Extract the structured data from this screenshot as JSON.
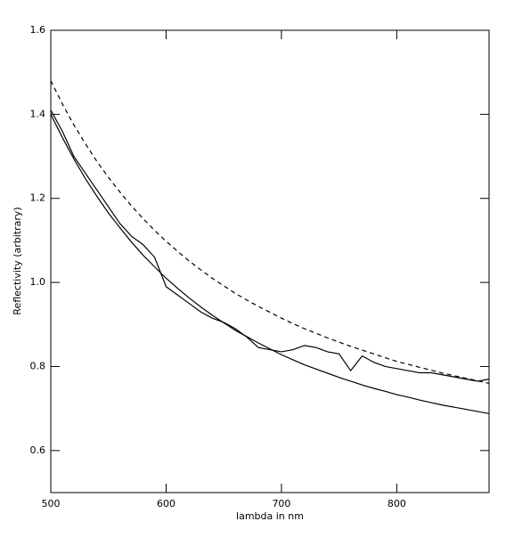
{
  "chart_data": {
    "type": "line",
    "xlabel": "lambda in nm",
    "ylabel": "Reflectivity (arbitrary)",
    "x": [
      500,
      510,
      520,
      530,
      540,
      550,
      560,
      570,
      580,
      590,
      600,
      610,
      620,
      630,
      640,
      650,
      660,
      670,
      680,
      690,
      700,
      710,
      720,
      730,
      740,
      750,
      760,
      770,
      780,
      790,
      800,
      810,
      820,
      830,
      840,
      850,
      860,
      870,
      880
    ],
    "series": [
      {
        "color": "#000000",
        "linestyle": "solid",
        "values": [
          1.4,
          1.345,
          1.294,
          1.247,
          1.205,
          1.165,
          1.13,
          1.096,
          1.065,
          1.037,
          1.01,
          0.986,
          0.963,
          0.942,
          0.922,
          0.904,
          0.886,
          0.871,
          0.856,
          0.842,
          0.828,
          0.816,
          0.804,
          0.794,
          0.784,
          0.774,
          0.765,
          0.756,
          0.748,
          0.741,
          0.733,
          0.727,
          0.72,
          0.714,
          0.708,
          0.703,
          0.698,
          0.693,
          0.688
        ]
      },
      {
        "color": "#000000",
        "linestyle": "dashed",
        "values": [
          1.48,
          1.425,
          1.375,
          1.33,
          1.288,
          1.25,
          1.215,
          1.182,
          1.152,
          1.124,
          1.098,
          1.074,
          1.051,
          1.03,
          1.01,
          0.992,
          0.974,
          0.958,
          0.943,
          0.929,
          0.915,
          0.902,
          0.89,
          0.879,
          0.868,
          0.858,
          0.848,
          0.839,
          0.83,
          0.821,
          0.812,
          0.805,
          0.798,
          0.791,
          0.784,
          0.778,
          0.772,
          0.766,
          0.76
        ]
      },
      {
        "color": "#000000",
        "linestyle": "solid",
        "values": [
          1.41,
          1.36,
          1.3,
          1.26,
          1.22,
          1.18,
          1.14,
          1.11,
          1.09,
          1.06,
          0.99,
          0.97,
          0.95,
          0.93,
          0.915,
          0.905,
          0.89,
          0.87,
          0.845,
          0.84,
          0.835,
          0.84,
          0.85,
          0.845,
          0.835,
          0.83,
          0.79,
          0.825,
          0.81,
          0.8,
          0.795,
          0.79,
          0.785,
          0.785,
          0.78,
          0.775,
          0.77,
          0.765,
          0.77
        ]
      }
    ],
    "xlim": [
      500,
      880
    ],
    "ylim": [
      0.5,
      1.6
    ],
    "xticks": [
      500,
      600,
      700,
      800
    ],
    "yticks": [
      0.6,
      0.8,
      {
        "value": 1,
        "label": "1.0"
      },
      1.2,
      1.4,
      1.6
    ]
  }
}
